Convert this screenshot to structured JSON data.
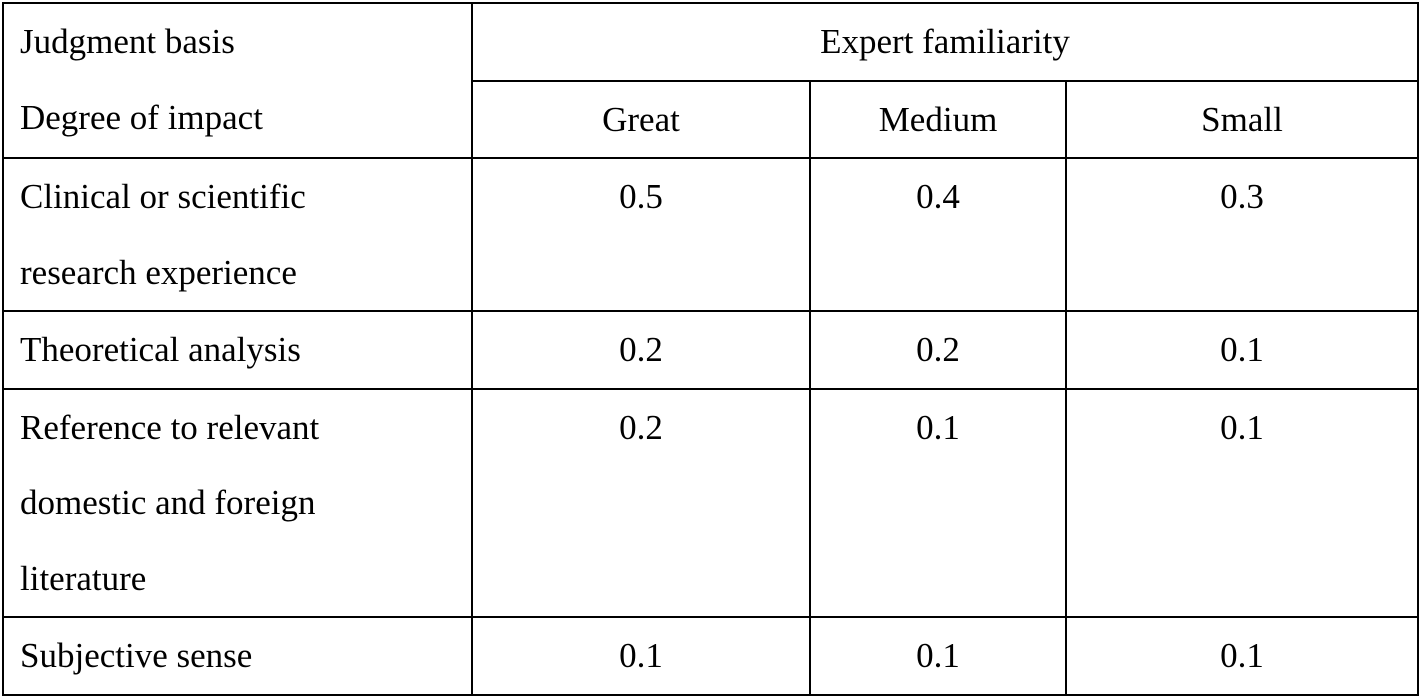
{
  "table": {
    "header": {
      "corner_line1": "Judgment basis",
      "corner_line2": "Degree of impact",
      "group_label": "Expert familiarity",
      "columns": [
        "Great",
        "Medium",
        "Small"
      ]
    },
    "rows": [
      {
        "label_lines": [
          "Clinical or scientific",
          "research experience"
        ],
        "values": [
          "0.5",
          "0.4",
          "0.3"
        ]
      },
      {
        "label_lines": [
          "Theoretical analysis"
        ],
        "values": [
          "0.2",
          "0.2",
          "0.1"
        ]
      },
      {
        "label_lines": [
          "Reference to relevant",
          "domestic and foreign",
          "literature"
        ],
        "values": [
          "0.2",
          "0.1",
          "0.1"
        ]
      },
      {
        "label_lines": [
          "Subjective sense"
        ],
        "values": [
          "0.1",
          "0.1",
          "0.1"
        ]
      }
    ]
  }
}
